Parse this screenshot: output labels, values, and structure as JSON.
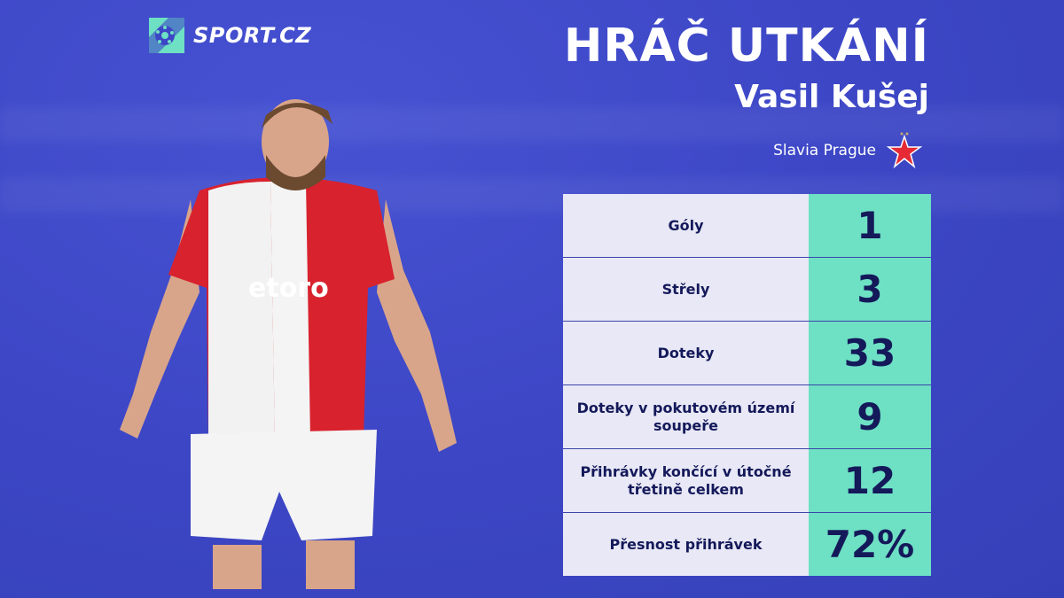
{
  "brand": {
    "name": "SPORT.CZ",
    "accent": "#6ee0c4"
  },
  "header": {
    "title": "HRÁČ UTKÁNÍ",
    "player_name": "Vasil Kušej",
    "team": "Slavia Prague"
  },
  "colors": {
    "background": "#3d47c6",
    "label_bg": "#e8e8f6",
    "value_bg": "#6ee0c4",
    "text": "#14195a",
    "team_star": "#e52a36"
  },
  "stats": [
    {
      "label": "Góly",
      "value": "1"
    },
    {
      "label": "Střely",
      "value": "3"
    },
    {
      "label": "Doteky",
      "value": "33"
    },
    {
      "label": "Doteky v pokutovém území soupeře",
      "value": "9"
    },
    {
      "label": "Přihrávky končící v útočné třetině celkem",
      "value": "12"
    },
    {
      "label": "Přesnost přihrávek",
      "value": "72%"
    }
  ]
}
